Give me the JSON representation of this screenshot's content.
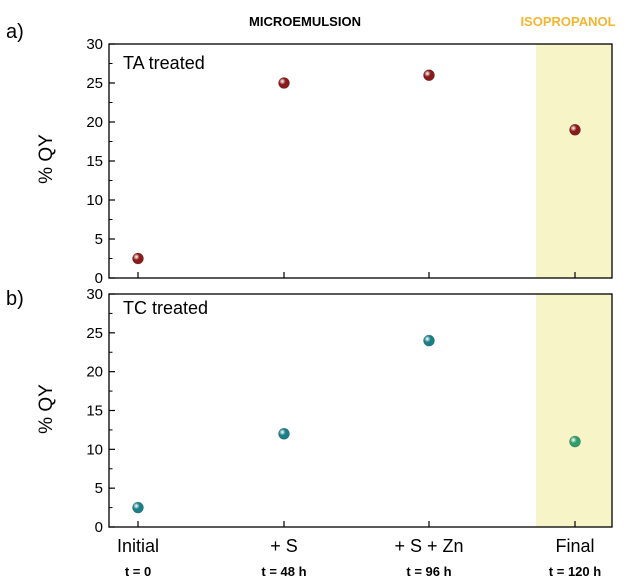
{
  "header": {
    "left": "MICROEMULSION",
    "right": "ISOPROPANOL",
    "right_color": "#f2b632",
    "highlight_color": "#f7f4c8"
  },
  "categories": [
    "Initial",
    "+ S",
    "+ S + Zn",
    "Final"
  ],
  "times": [
    "t = 0",
    "t = 48 h",
    "t = 96 h",
    "t = 120 h"
  ],
  "chart_data": [
    {
      "type": "scatter",
      "panel_label": "a)",
      "inset_label": "TA treated",
      "ylabel": "% QY",
      "ylim": [
        0,
        30
      ],
      "yticks": [
        "0",
        "5",
        "10",
        "15",
        "20",
        "25",
        "30"
      ],
      "categories": [
        "Initial",
        "+ S",
        "+ S + Zn",
        "Final"
      ],
      "series": [
        {
          "values": [
            2.5,
            25,
            26,
            19
          ],
          "color": "#8b1a1a",
          "highlight_color": "#8b1a1a"
        }
      ]
    },
    {
      "type": "scatter",
      "panel_label": "b)",
      "inset_label": "TC treated",
      "ylabel": "% QY",
      "ylim": [
        0,
        30
      ],
      "yticks": [
        "0",
        "5",
        "10",
        "15",
        "20",
        "25",
        "30"
      ],
      "categories": [
        "Initial",
        "+ S",
        "+ S + Zn",
        "Final"
      ],
      "series": [
        {
          "values": [
            2.5,
            12,
            24,
            11
          ],
          "color": "#1a7f86",
          "highlight_color": "#2e9f6a"
        }
      ]
    }
  ]
}
